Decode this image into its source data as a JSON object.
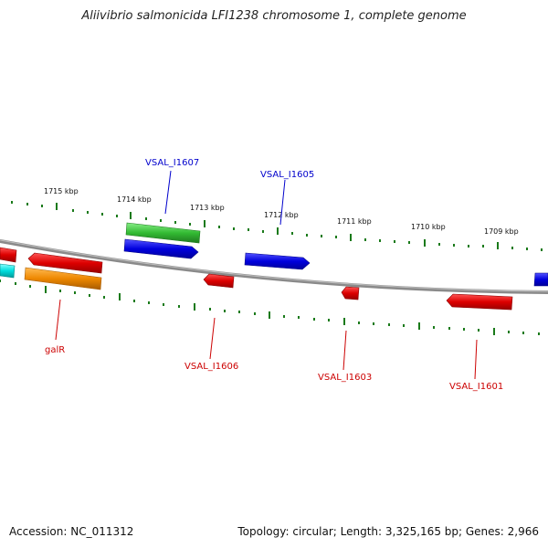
{
  "title": "Aliivibrio salmonicida LFI1238 chromosome 1, complete genome",
  "accession": "Accession: NC_011312",
  "summary": "Topology: circular; Length: 3,325,165 bp; Genes: 2,966",
  "colors": {
    "backbone": "#888888",
    "tick": "#1a7a1a",
    "forward_label": "#0000cc",
    "reverse_label": "#cc0000",
    "red_feature": "#dd0000",
    "blue_feature": "#0000dd",
    "green_feature": "#33bb33",
    "orange_feature": "#ee8800",
    "cyan_feature": "#00dddd"
  },
  "kbp_labels": [
    "1715 kbp",
    "1714 kbp",
    "1713 kbp",
    "1712 kbp",
    "1711 kbp",
    "1710 kbp",
    "1709 kbp"
  ],
  "gene_labels": {
    "vsal_i1607": "VSAL_I1607",
    "vsal_i1605": "VSAL_I1605",
    "galr": "galR",
    "vsal_i1606": "VSAL_I1606",
    "vsal_i1603": "VSAL_I1603",
    "vsal_i1601": "VSAL_I1601"
  }
}
